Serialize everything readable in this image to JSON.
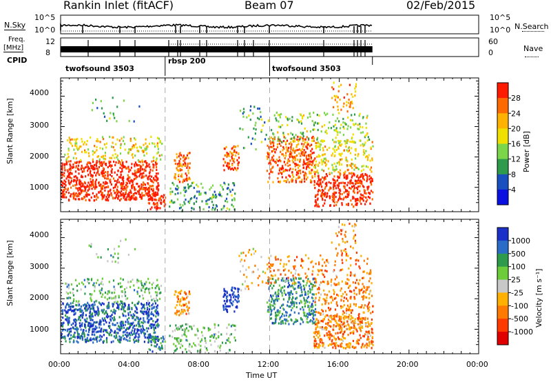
{
  "header": {
    "title": "Rankin Inlet (fitACF)",
    "beam": "Beam 07",
    "date": "02/Feb/2015"
  },
  "side_labels": {
    "nsky": "N.Sky",
    "freq": "Freq.",
    "freq_unit": "[MHz]",
    "cpid": "CPID",
    "nsearch": "N.Search",
    "nave": "Nave"
  },
  "small_panels": {
    "nsky_left_ticks": [
      "10^5",
      "10^0"
    ],
    "nsky_right_ticks": [
      "10^5",
      "10^0"
    ],
    "freq_left_ticks": [
      "12",
      "8"
    ],
    "freq_right_ticks": [
      "60",
      "0"
    ]
  },
  "cpid": {
    "segments": [
      {
        "label": "twofsound 3503",
        "start_hour": 0
      },
      {
        "label": "rbsp 200",
        "start_hour": 6
      },
      {
        "label": "twofsound 3503",
        "start_hour": 12
      }
    ]
  },
  "x_axis": {
    "label": "Time UT",
    "ticks": [
      "00:00",
      "04:00",
      "08:00",
      "12:00",
      "16:00",
      "20:00",
      "00:00"
    ],
    "range_hours": [
      0,
      24
    ],
    "data_end_hour": 17.9
  },
  "chart_data": [
    {
      "type": "heatmap",
      "title": "",
      "xlabel": "Time UT",
      "ylabel": "Slant Range [km]",
      "ylim": [
        200,
        4600
      ],
      "yticks": [
        "1000",
        "2000",
        "3000",
        "4000"
      ],
      "colorbar": {
        "label": "Power [dB]",
        "ticks": [
          "28",
          "24",
          "20",
          "16",
          "12",
          "8",
          "4"
        ],
        "colors": [
          "#ff1a00",
          "#ff6a00",
          "#ffb300",
          "#f0e000",
          "#7cd64a",
          "#2e9a4c",
          "#1a4fc0",
          "#0a10e0"
        ]
      }
    },
    {
      "type": "heatmap",
      "title": "",
      "xlabel": "Time UT",
      "ylabel": "Slant Range [km]",
      "ylim": [
        200,
        4600
      ],
      "yticks": [
        "1000",
        "2000",
        "3000",
        "4000"
      ],
      "colorbar": {
        "label": "Velocity [m s⁻¹]",
        "ticks": [
          "1000",
          "500",
          "100",
          "25",
          "-25",
          "-100",
          "-500",
          "-1000"
        ],
        "colors": [
          "#1a30c8",
          "#2a6cc8",
          "#2e9a4c",
          "#6ccc3a",
          "#c8c8c8",
          "#ffb000",
          "#ff7a00",
          "#ff3a00",
          "#e00000"
        ]
      }
    }
  ]
}
